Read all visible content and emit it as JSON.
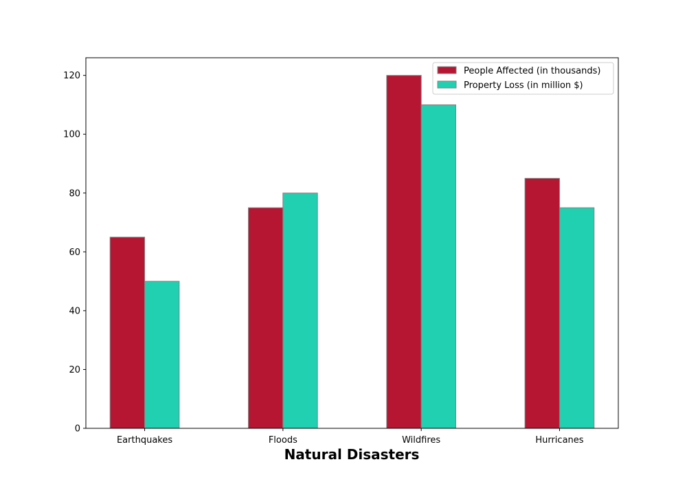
{
  "chart_data": {
    "type": "bar",
    "title": "",
    "xlabel": "Natural Disasters",
    "ylabel": "",
    "categories": [
      "Earthquakes",
      "Floods",
      "Wildfires",
      "Hurricanes"
    ],
    "series": [
      {
        "name": "People Affected (in thousands)",
        "values": [
          65,
          75,
          120,
          85
        ],
        "color": "#b71632"
      },
      {
        "name": "Property Loss (in million $)",
        "values": [
          50,
          80,
          110,
          75
        ],
        "color": "#20d0b0"
      }
    ],
    "ylim": [
      0,
      126
    ],
    "yticks": [
      0,
      20,
      40,
      60,
      80,
      100,
      120
    ],
    "grid": false,
    "legend_position": "top-right",
    "bar_edge_color": "#808080"
  }
}
